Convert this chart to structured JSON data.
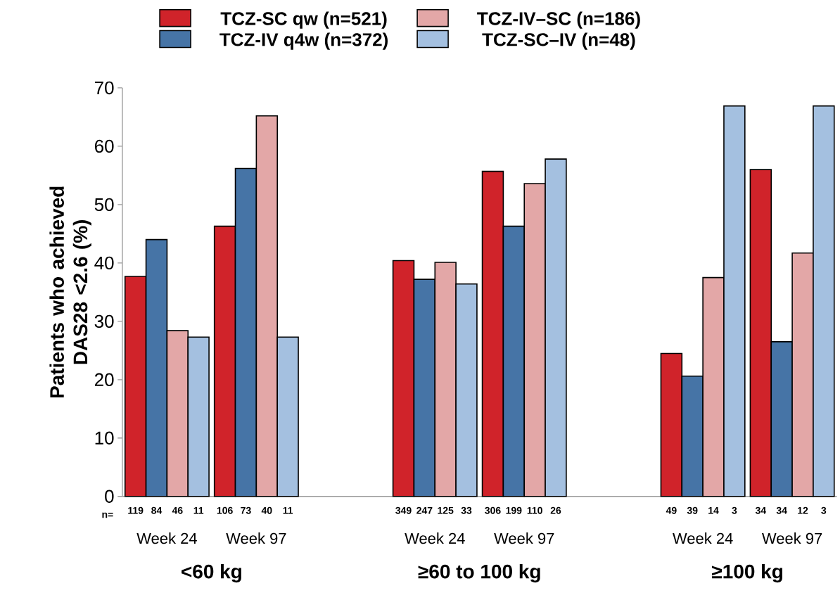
{
  "chart_data": {
    "type": "bar",
    "categories": [
      "Week 24",
      "Week 97",
      null,
      "Week 24",
      "Week 97",
      null,
      "Week 24",
      "Week 97"
    ],
    "ylabel": "Patients who achieved DAS28 <2.6 (%)",
    "ylim": [
      0,
      70
    ],
    "yticks": [
      0,
      10,
      20,
      30,
      40,
      50,
      60,
      70
    ],
    "legend": "top",
    "series": [
      {
        "name": "TCZ-SC qw (n=521)",
        "color": "#d0232a",
        "values": [
          37.7,
          46.3,
          null,
          40.4,
          55.7,
          null,
          24.5,
          56.0
        ]
      },
      {
        "name": "TCZ-IV q4w (n=372)",
        "color": "#4674a6",
        "values": [
          44.0,
          56.2,
          null,
          37.2,
          46.3,
          null,
          20.6,
          26.5
        ]
      },
      {
        "name": "TCZ-IV–SC (n=186)",
        "color": "#e3a7a7",
        "values": [
          28.4,
          65.2,
          null,
          40.1,
          53.6,
          null,
          37.5,
          41.7
        ]
      },
      {
        "name": "TCZ-SC–IV  (n=48)",
        "color": "#a4c0e0",
        "values": [
          27.3,
          27.3,
          null,
          36.4,
          57.8,
          null,
          66.9,
          66.9
        ]
      }
    ],
    "annotations": [
      "n=",
      "119",
      "84",
      "46",
      "11",
      "106",
      "73",
      "40",
      "11",
      "349",
      "247",
      "125",
      "33",
      "306",
      "199",
      "110",
      "26",
      "49",
      "39",
      "14",
      "3",
      "34",
      "34",
      "12",
      "3",
      "<60 kg",
      "≥60 to 100 kg",
      "≥100 kg"
    ]
  }
}
